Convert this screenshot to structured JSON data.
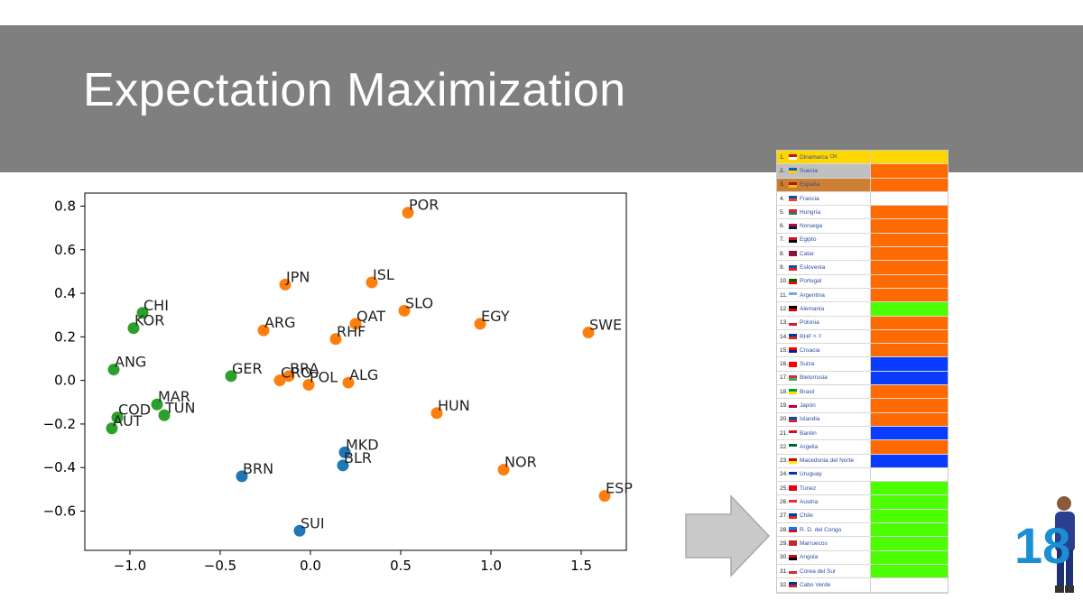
{
  "slide": {
    "title": "Expectation Maximization"
  },
  "colors": {
    "blue": "#1f77b4",
    "orange": "#ff7f0e",
    "green": "#2ca02c",
    "rank_orange": "#ff6a00",
    "rank_blue": "#0a3cff",
    "rank_green": "#4cff00",
    "rank_gold": "#ffd700"
  },
  "chart_data": {
    "type": "scatter",
    "xlim": [
      -1.25,
      1.75
    ],
    "ylim": [
      -0.78,
      0.86
    ],
    "x_ticks": [
      -1.0,
      -0.5,
      0.0,
      0.5,
      1.0,
      1.5
    ],
    "x_tick_labels": [
      "−1.0",
      "−0.5",
      "0.0",
      "0.5",
      "1.0",
      "1.5"
    ],
    "y_ticks": [
      0.8,
      0.6,
      0.4,
      0.2,
      0.0,
      -0.2,
      -0.4,
      -0.6
    ],
    "y_tick_labels": [
      "0.8",
      "0.6",
      "0.4",
      "0.2",
      "0.0",
      "−0.2",
      "−0.4",
      "−0.6"
    ],
    "grid": false,
    "points": [
      {
        "label": "POR",
        "x": 0.54,
        "y": 0.77,
        "cluster": "orange"
      },
      {
        "label": "JPN",
        "x": -0.14,
        "y": 0.44,
        "cluster": "orange"
      },
      {
        "label": "ISL",
        "x": 0.34,
        "y": 0.45,
        "cluster": "orange"
      },
      {
        "label": "SLO",
        "x": 0.52,
        "y": 0.32,
        "cluster": "orange"
      },
      {
        "label": "EGY",
        "x": 0.94,
        "y": 0.26,
        "cluster": "orange"
      },
      {
        "label": "SWE",
        "x": 1.54,
        "y": 0.22,
        "cluster": "orange"
      },
      {
        "label": "ARG",
        "x": -0.26,
        "y": 0.23,
        "cluster": "orange"
      },
      {
        "label": "QAT",
        "x": 0.25,
        "y": 0.26,
        "cluster": "orange"
      },
      {
        "label": "RHF",
        "x": 0.14,
        "y": 0.19,
        "cluster": "orange"
      },
      {
        "label": "BRA",
        "x": -0.12,
        "y": 0.02,
        "cluster": "orange"
      },
      {
        "label": "CRO",
        "x": -0.17,
        "y": 0.0,
        "cluster": "orange"
      },
      {
        "label": "POL",
        "x": -0.01,
        "y": -0.02,
        "cluster": "orange"
      },
      {
        "label": "ALG",
        "x": 0.21,
        "y": -0.01,
        "cluster": "orange"
      },
      {
        "label": "HUN",
        "x": 0.7,
        "y": -0.15,
        "cluster": "orange"
      },
      {
        "label": "NOR",
        "x": 1.07,
        "y": -0.41,
        "cluster": "orange"
      },
      {
        "label": "ESP",
        "x": 1.63,
        "y": -0.53,
        "cluster": "orange"
      },
      {
        "label": "CHI",
        "x": -0.93,
        "y": 0.31,
        "cluster": "green"
      },
      {
        "label": "KOR",
        "x": -0.98,
        "y": 0.24,
        "cluster": "green"
      },
      {
        "label": "ANG",
        "x": -1.09,
        "y": 0.05,
        "cluster": "green"
      },
      {
        "label": "GER",
        "x": -0.44,
        "y": 0.02,
        "cluster": "green"
      },
      {
        "label": "MAR",
        "x": -0.85,
        "y": -0.11,
        "cluster": "green"
      },
      {
        "label": "TUN",
        "x": -0.81,
        "y": -0.16,
        "cluster": "green"
      },
      {
        "label": "COD",
        "x": -1.07,
        "y": -0.17,
        "cluster": "green"
      },
      {
        "label": "AUT",
        "x": -1.1,
        "y": -0.22,
        "cluster": "green"
      },
      {
        "label": "MKD",
        "x": 0.19,
        "y": -0.33,
        "cluster": "blue"
      },
      {
        "label": "BLR",
        "x": 0.18,
        "y": -0.39,
        "cluster": "blue"
      },
      {
        "label": "BRN",
        "x": -0.38,
        "y": -0.44,
        "cluster": "blue"
      },
      {
        "label": "SUI",
        "x": -0.06,
        "y": -0.69,
        "cluster": "blue"
      }
    ]
  },
  "ranking": [
    {
      "rank": "1.",
      "name": "Dinamarca",
      "suffix": "CM",
      "color": "gold",
      "flag": [
        "#c8102e",
        "#ffffff"
      ]
    },
    {
      "rank": "2.",
      "name": "Suecia",
      "color": "orange",
      "flag": [
        "#006aa7",
        "#fecc00"
      ]
    },
    {
      "rank": "3.",
      "name": "España",
      "color": "orange",
      "flag": [
        "#aa151b",
        "#f1bf00"
      ]
    },
    {
      "rank": "4.",
      "name": "Francia",
      "color": "white",
      "flag": [
        "#0055a4",
        "#ef4135"
      ]
    },
    {
      "rank": "5.",
      "name": "Hungría",
      "color": "orange",
      "flag": [
        "#ce2939",
        "#477050"
      ]
    },
    {
      "rank": "6.",
      "name": "Noruega",
      "color": "orange",
      "flag": [
        "#ba0c2f",
        "#00205b"
      ]
    },
    {
      "rank": "7.",
      "name": "Egipto",
      "color": "orange",
      "flag": [
        "#ce1126",
        "#000000"
      ]
    },
    {
      "rank": "8.",
      "name": "Catar",
      "color": "orange",
      "flag": [
        "#8a1538",
        "#8a1538"
      ]
    },
    {
      "rank": "9.",
      "name": "Eslovenia",
      "color": "orange",
      "flag": [
        "#005da4",
        "#ed1c24"
      ]
    },
    {
      "rank": "10.",
      "name": "Portugal",
      "color": "orange",
      "flag": [
        "#006600",
        "#ff0000"
      ]
    },
    {
      "rank": "11.",
      "name": "Argentina",
      "color": "orange",
      "flag": [
        "#74acdf",
        "#ffffff"
      ]
    },
    {
      "rank": "12.",
      "name": "Alemania",
      "color": "green",
      "flag": [
        "#000000",
        "#dd0000"
      ]
    },
    {
      "rank": "13.",
      "name": "Polonia",
      "color": "orange",
      "flag": [
        "#ffffff",
        "#dc143c"
      ]
    },
    {
      "rank": "14.",
      "name": "RHF",
      "suffix": "n. 3",
      "color": "orange",
      "flag": [
        "#0039a6",
        "#d52b1e"
      ]
    },
    {
      "rank": "15.",
      "name": "Croacia",
      "color": "orange",
      "flag": [
        "#ff0000",
        "#171796"
      ]
    },
    {
      "rank": "16.",
      "name": "Suiza",
      "color": "blue",
      "flag": [
        "#ff0000",
        "#ff0000"
      ]
    },
    {
      "rank": "17.",
      "name": "Bielorrusia",
      "color": "blue",
      "flag": [
        "#c8313e",
        "#4aa657"
      ]
    },
    {
      "rank": "18.",
      "name": "Brasil",
      "color": "orange",
      "flag": [
        "#009c3b",
        "#ffdf00"
      ]
    },
    {
      "rank": "19.",
      "name": "Japón",
      "color": "orange",
      "flag": [
        "#ffffff",
        "#bc002d"
      ]
    },
    {
      "rank": "20.",
      "name": "Islandia",
      "color": "orange",
      "flag": [
        "#02529c",
        "#dc1e35"
      ]
    },
    {
      "rank": "21.",
      "name": "Baréin",
      "color": "blue",
      "flag": [
        "#ce1126",
        "#ffffff"
      ]
    },
    {
      "rank": "22.",
      "name": "Argelia",
      "color": "orange",
      "flag": [
        "#006233",
        "#ffffff"
      ]
    },
    {
      "rank": "23.",
      "name": "Macedonia del Norte",
      "color": "blue",
      "flag": [
        "#d20000",
        "#ffe600"
      ]
    },
    {
      "rank": "24.",
      "name": "Uruguay",
      "color": "white",
      "flag": [
        "#0038a8",
        "#ffffff"
      ]
    },
    {
      "rank": "25.",
      "name": "Túnez",
      "color": "green",
      "flag": [
        "#e70013",
        "#e70013"
      ]
    },
    {
      "rank": "26.",
      "name": "Austria",
      "color": "green",
      "flag": [
        "#ed2939",
        "#ffffff"
      ]
    },
    {
      "rank": "27.",
      "name": "Chile",
      "color": "green",
      "flag": [
        "#0039a6",
        "#d52b1e"
      ]
    },
    {
      "rank": "28.",
      "name": "R. D. del Congo",
      "color": "green",
      "flag": [
        "#007fff",
        "#ce1021"
      ]
    },
    {
      "rank": "29.",
      "name": "Marruecos",
      "color": "green",
      "flag": [
        "#c1272d",
        "#c1272d"
      ]
    },
    {
      "rank": "30.",
      "name": "Angola",
      "color": "green",
      "flag": [
        "#cc092f",
        "#000000"
      ]
    },
    {
      "rank": "31.",
      "name": "Corea del Sur",
      "color": "green",
      "flag": [
        "#ffffff",
        "#cd2e3a"
      ]
    },
    {
      "rank": "32.",
      "name": "Cabo Verde",
      "color": "white",
      "flag": [
        "#003893",
        "#cf2027"
      ]
    }
  ],
  "logo": {
    "text": "18"
  }
}
